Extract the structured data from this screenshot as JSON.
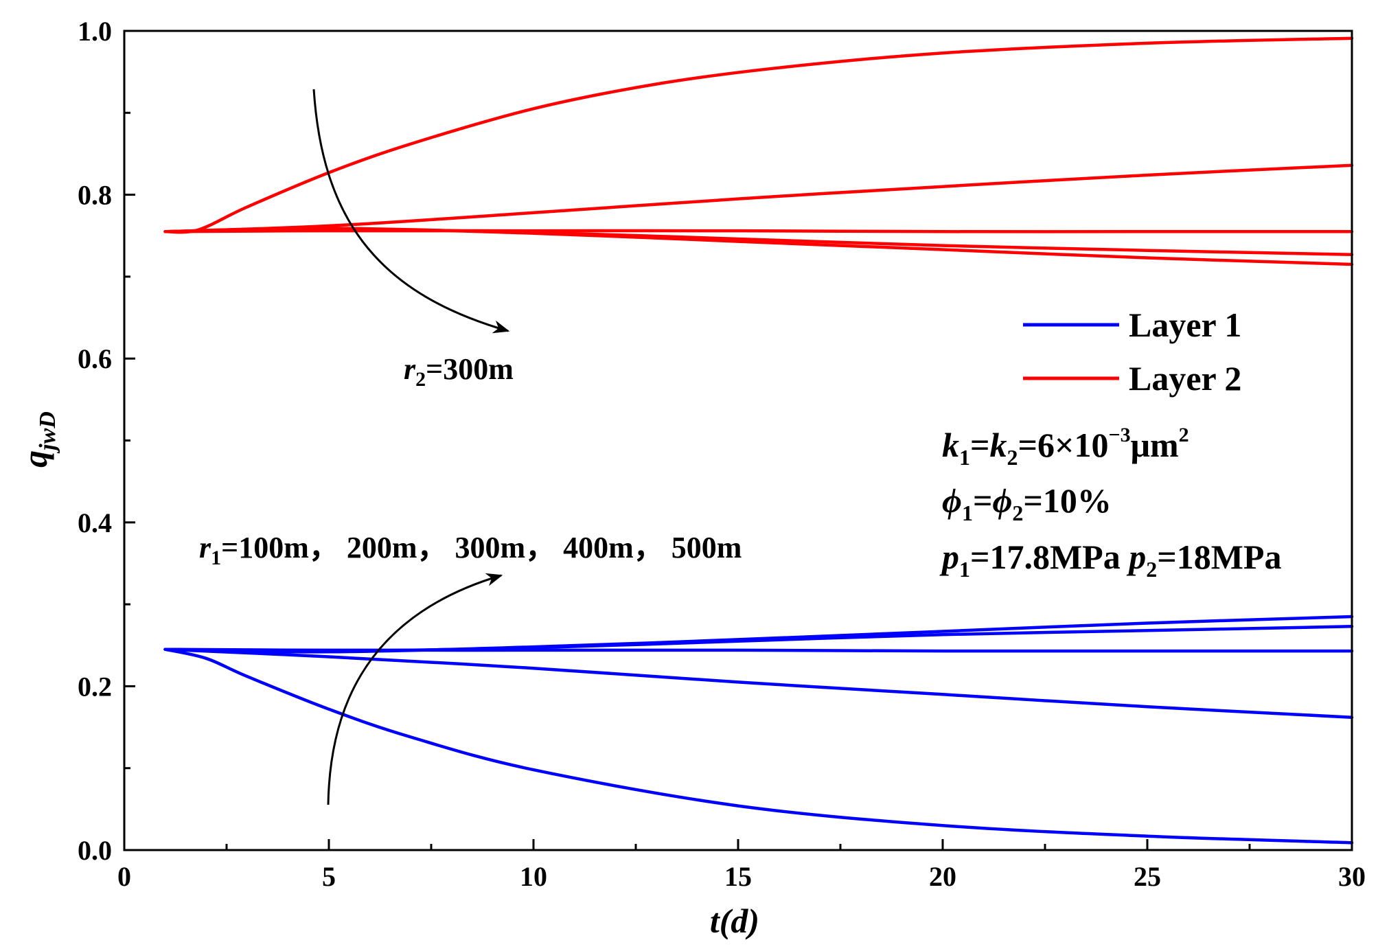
{
  "chart_data": {
    "type": "line",
    "xlabel": "t(d)",
    "ylabel": {
      "base": "q",
      "sub": "jwD"
    },
    "xlim": [
      0,
      30
    ],
    "ylim": [
      0,
      1.0
    ],
    "x_ticks": [
      0,
      5,
      10,
      15,
      20,
      25,
      30
    ],
    "x_tick_labels": [
      "0",
      "5",
      "10",
      "15",
      "20",
      "25",
      "30"
    ],
    "y_ticks": [
      0.0,
      0.2,
      0.4,
      0.6,
      0.8,
      1.0
    ],
    "y_tick_labels": [
      "0.0",
      "0.2",
      "0.4",
      "0.6",
      "0.8",
      "1.0"
    ],
    "grid": false,
    "legend_position": "right-middle",
    "legend": [
      {
        "label": "Layer 1",
        "color": "#0000ff"
      },
      {
        "label": "Layer 2",
        "color": "#ff0000"
      }
    ],
    "series": [
      {
        "group": "Layer 1",
        "color": "#0000ff",
        "x": [
          1,
          2,
          3,
          5,
          7,
          10,
          15,
          20,
          25,
          30
        ],
        "values": [
          0.245,
          0.234,
          0.212,
          0.172,
          0.138,
          0.098,
          0.054,
          0.03,
          0.017,
          0.009
        ]
      },
      {
        "group": "Layer 1",
        "color": "#0000ff",
        "x": [
          1,
          5,
          10,
          15,
          20,
          25,
          30
        ],
        "values": [
          0.245,
          0.236,
          0.222,
          0.205,
          0.19,
          0.175,
          0.162
        ]
      },
      {
        "group": "Layer 1",
        "color": "#0000ff",
        "x": [
          1,
          5,
          10,
          15,
          20,
          25,
          30
        ],
        "values": [
          0.245,
          0.244,
          0.244,
          0.244,
          0.243,
          0.243,
          0.243
        ]
      },
      {
        "group": "Layer 1",
        "color": "#0000ff",
        "x": [
          1,
          5,
          10,
          15,
          20,
          25,
          30
        ],
        "values": [
          0.245,
          0.243,
          0.247,
          0.255,
          0.263,
          0.268,
          0.273
        ]
      },
      {
        "group": "Layer 1",
        "color": "#0000ff",
        "x": [
          1,
          5,
          10,
          15,
          20,
          25,
          30
        ],
        "values": [
          0.245,
          0.242,
          0.248,
          0.257,
          0.267,
          0.277,
          0.285
        ]
      },
      {
        "group": "Layer 2",
        "color": "#ff0000",
        "x": [
          1,
          1.8,
          3,
          5,
          7,
          10,
          13,
          16,
          20,
          25,
          30
        ],
        "values": [
          0.755,
          0.757,
          0.785,
          0.827,
          0.862,
          0.905,
          0.935,
          0.955,
          0.973,
          0.985,
          0.991
        ]
      },
      {
        "group": "Layer 2",
        "color": "#ff0000",
        "x": [
          1,
          5,
          10,
          15,
          20,
          25,
          30
        ],
        "values": [
          0.755,
          0.762,
          0.778,
          0.795,
          0.81,
          0.824,
          0.836
        ]
      },
      {
        "group": "Layer 2",
        "color": "#ff0000",
        "x": [
          1,
          5,
          10,
          15,
          20,
          25,
          30
        ],
        "values": [
          0.755,
          0.756,
          0.756,
          0.756,
          0.755,
          0.755,
          0.755
        ]
      },
      {
        "group": "Layer 2",
        "color": "#ff0000",
        "x": [
          1,
          5,
          10,
          15,
          20,
          25,
          30
        ],
        "values": [
          0.755,
          0.758,
          0.754,
          0.746,
          0.738,
          0.732,
          0.727
        ]
      },
      {
        "group": "Layer 2",
        "color": "#ff0000",
        "x": [
          1,
          5,
          10,
          15,
          20,
          25,
          30
        ],
        "values": [
          0.755,
          0.759,
          0.753,
          0.743,
          0.733,
          0.723,
          0.715
        ]
      }
    ],
    "annotations": {
      "r2": {
        "var": "r",
        "sub": "2",
        "rest": "=300m"
      },
      "r1": {
        "var": "r",
        "sub": "1",
        "rest": "=100m， 200m， 300m， 400m， 500m"
      },
      "params": {
        "k": {
          "v1": "k",
          "s1": "1",
          "eq": "=",
          "v2": "k",
          "s2": "2",
          "rest": "=6×10",
          "exp": "−3",
          "unit": "μm",
          "unit_exp": "2"
        },
        "phi": {
          "v1": "ϕ",
          "s1": "1",
          "eq": "=",
          "v2": "ϕ",
          "s2": "2",
          "rest": "=10%"
        },
        "p": {
          "v1": "p",
          "s1": "1",
          "mid": "=17.8MPa ",
          "v2": "p",
          "s2": "2",
          "rest": "=18MPa"
        }
      }
    }
  }
}
